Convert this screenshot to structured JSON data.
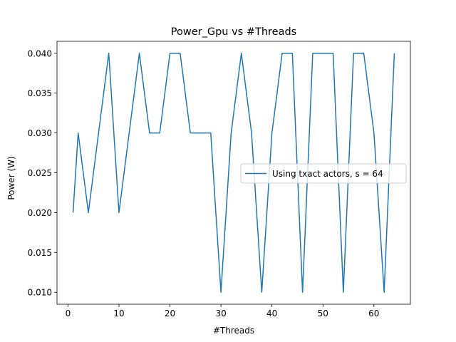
{
  "chart_data": {
    "type": "line",
    "title": "Power_Gpu vs #Threads",
    "xlabel": "#Threads",
    "ylabel": "Power (W)",
    "xlim": [
      -2.15,
      67.15
    ],
    "ylim": [
      0.0085,
      0.0415
    ],
    "xticks": [
      0,
      10,
      20,
      30,
      40,
      50,
      60
    ],
    "xtick_labels": [
      "0",
      "10",
      "20",
      "30",
      "40",
      "50",
      "60"
    ],
    "yticks": [
      0.01,
      0.015,
      0.02,
      0.025,
      0.03,
      0.035,
      0.04
    ],
    "ytick_labels": [
      "0.010",
      "0.015",
      "0.020",
      "0.025",
      "0.030",
      "0.035",
      "0.040"
    ],
    "grid": false,
    "legend_position": "center-right",
    "series": [
      {
        "name": "Using txact actors, s = 64",
        "color": "#1f77b4",
        "x": [
          1,
          2,
          4,
          6,
          8,
          10,
          12,
          14,
          16,
          18,
          20,
          22,
          24,
          26,
          28,
          30,
          32,
          34,
          36,
          38,
          40,
          42,
          44,
          46,
          48,
          50,
          52,
          54,
          56,
          58,
          60,
          62,
          64
        ],
        "y": [
          0.02,
          0.03,
          0.02,
          0.03,
          0.04,
          0.02,
          0.03,
          0.04,
          0.03,
          0.03,
          0.04,
          0.04,
          0.03,
          0.03,
          0.03,
          0.01,
          0.03,
          0.04,
          0.03,
          0.01,
          0.03,
          0.04,
          0.04,
          0.01,
          0.04,
          0.04,
          0.04,
          0.01,
          0.04,
          0.04,
          0.03,
          0.01,
          0.04
        ]
      }
    ]
  }
}
